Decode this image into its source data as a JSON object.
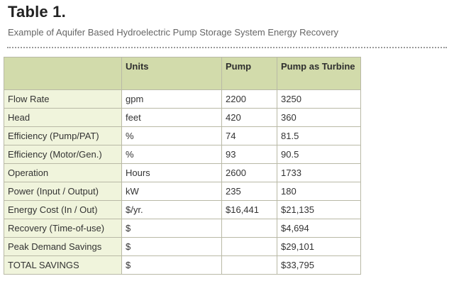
{
  "title": "Table 1.",
  "subtitle": "Example of Aquifer Based Hydroelectric Pump Storage System Energy Recovery",
  "table": {
    "headers": [
      "",
      "Units",
      "Pump",
      "Pump as Turbine"
    ],
    "rows": [
      [
        "Flow Rate",
        "gpm",
        "2200",
        "3250"
      ],
      [
        "Head",
        "feet",
        "420",
        "360"
      ],
      [
        "Efficiency (Pump/PAT)",
        "%",
        "74",
        "81.5"
      ],
      [
        "Efficiency (Motor/Gen.)",
        "%",
        "93",
        "90.5"
      ],
      [
        "Operation",
        "Hours",
        "2600",
        "1733"
      ],
      [
        "Power (Input / Output)",
        "kW",
        "235",
        "180"
      ],
      [
        "Energy Cost (In / Out)",
        "$/yr.",
        "$16,441",
        "$21,135"
      ],
      [
        "Recovery (Time-of-use)",
        "$",
        "",
        "$4,694"
      ],
      [
        "Peak Demand Savings",
        "$",
        "",
        "$29,101"
      ],
      [
        "TOTAL SAVINGS",
        "$",
        "",
        "$33,795"
      ]
    ]
  }
}
